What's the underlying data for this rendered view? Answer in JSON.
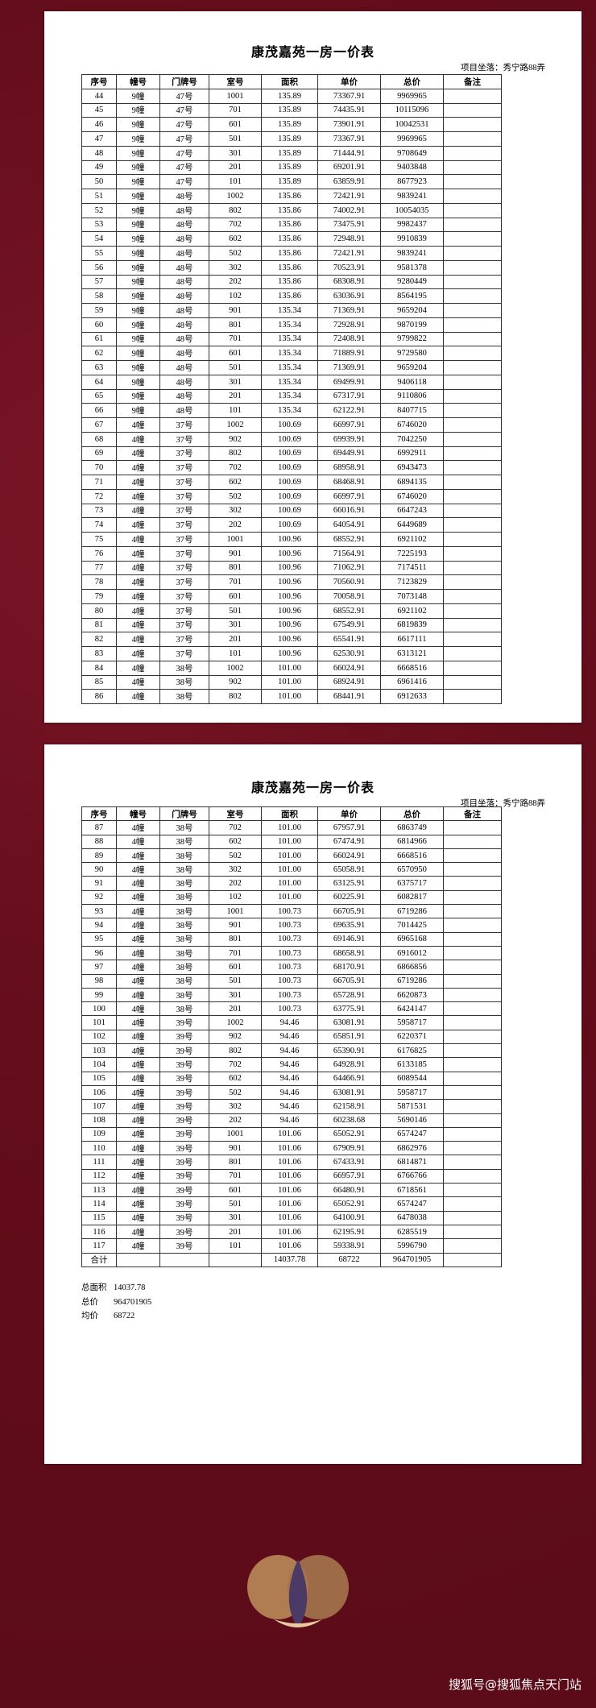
{
  "pages": [
    {
      "title": "康茂嘉苑一房一价表",
      "location": "项目坐落：秀宁路88弄",
      "headers": [
        "序号",
        "幢号",
        "门牌号",
        "室号",
        "面积",
        "单价",
        "总价",
        "备注"
      ],
      "rows": [
        [
          "44",
          "9幢",
          "47号",
          "1001",
          "135.89",
          "73367.91",
          "9969965"
        ],
        [
          "45",
          "9幢",
          "47号",
          "701",
          "135.89",
          "74435.91",
          "10115096"
        ],
        [
          "46",
          "9幢",
          "47号",
          "601",
          "135.89",
          "73901.91",
          "10042531"
        ],
        [
          "47",
          "9幢",
          "47号",
          "501",
          "135.89",
          "73367.91",
          "9969965"
        ],
        [
          "48",
          "9幢",
          "47号",
          "301",
          "135.89",
          "71444.91",
          "9708649"
        ],
        [
          "49",
          "9幢",
          "47号",
          "201",
          "135.89",
          "69201.91",
          "9403848"
        ],
        [
          "50",
          "9幢",
          "47号",
          "101",
          "135.89",
          "63859.91",
          "8677923"
        ],
        [
          "51",
          "9幢",
          "48号",
          "1002",
          "135.86",
          "72421.91",
          "9839241"
        ],
        [
          "52",
          "9幢",
          "48号",
          "802",
          "135.86",
          "74002.91",
          "10054035"
        ],
        [
          "53",
          "9幢",
          "48号",
          "702",
          "135.86",
          "73475.91",
          "9982437"
        ],
        [
          "54",
          "9幢",
          "48号",
          "602",
          "135.86",
          "72948.91",
          "9910839"
        ],
        [
          "55",
          "9幢",
          "48号",
          "502",
          "135.86",
          "72421.91",
          "9839241"
        ],
        [
          "56",
          "9幢",
          "48号",
          "302",
          "135.86",
          "70523.91",
          "9581378"
        ],
        [
          "57",
          "9幢",
          "48号",
          "202",
          "135.86",
          "68308.91",
          "9280449"
        ],
        [
          "58",
          "9幢",
          "48号",
          "102",
          "135.86",
          "63036.91",
          "8564195"
        ],
        [
          "59",
          "9幢",
          "48号",
          "901",
          "135.34",
          "71369.91",
          "9659204"
        ],
        [
          "60",
          "9幢",
          "48号",
          "801",
          "135.34",
          "72928.91",
          "9870199"
        ],
        [
          "61",
          "9幢",
          "48号",
          "701",
          "135.34",
          "72408.91",
          "9799822"
        ],
        [
          "62",
          "9幢",
          "48号",
          "601",
          "135.34",
          "71889.91",
          "9729580"
        ],
        [
          "63",
          "9幢",
          "48号",
          "501",
          "135.34",
          "71369.91",
          "9659204"
        ],
        [
          "64",
          "9幢",
          "48号",
          "301",
          "135.34",
          "69499.91",
          "9406118"
        ],
        [
          "65",
          "9幢",
          "48号",
          "201",
          "135.34",
          "67317.91",
          "9110806"
        ],
        [
          "66",
          "9幢",
          "48号",
          "101",
          "135.34",
          "62122.91",
          "8407715"
        ],
        [
          "67",
          "4幢",
          "37号",
          "1002",
          "100.69",
          "66997.91",
          "6746020"
        ],
        [
          "68",
          "4幢",
          "37号",
          "902",
          "100.69",
          "69939.91",
          "7042250"
        ],
        [
          "69",
          "4幢",
          "37号",
          "802",
          "100.69",
          "69449.91",
          "6992911"
        ],
        [
          "70",
          "4幢",
          "37号",
          "702",
          "100.69",
          "68958.91",
          "6943473"
        ],
        [
          "71",
          "4幢",
          "37号",
          "602",
          "100.69",
          "68468.91",
          "6894135"
        ],
        [
          "72",
          "4幢",
          "37号",
          "502",
          "100.69",
          "66997.91",
          "6746020"
        ],
        [
          "73",
          "4幢",
          "37号",
          "302",
          "100.69",
          "66016.91",
          "6647243"
        ],
        [
          "74",
          "4幢",
          "37号",
          "202",
          "100.69",
          "64054.91",
          "6449689"
        ],
        [
          "75",
          "4幢",
          "37号",
          "1001",
          "100.96",
          "68552.91",
          "6921102"
        ],
        [
          "76",
          "4幢",
          "37号",
          "901",
          "100.96",
          "71564.91",
          "7225193"
        ],
        [
          "77",
          "4幢",
          "37号",
          "801",
          "100.96",
          "71062.91",
          "7174511"
        ],
        [
          "78",
          "4幢",
          "37号",
          "701",
          "100.96",
          "70560.91",
          "7123829"
        ],
        [
          "79",
          "4幢",
          "37号",
          "601",
          "100.96",
          "70058.91",
          "7073148"
        ],
        [
          "80",
          "4幢",
          "37号",
          "501",
          "100.96",
          "68552.91",
          "6921102"
        ],
        [
          "81",
          "4幢",
          "37号",
          "301",
          "100.96",
          "67549.91",
          "6819839"
        ],
        [
          "82",
          "4幢",
          "37号",
          "201",
          "100.96",
          "65541.91",
          "6617111"
        ],
        [
          "83",
          "4幢",
          "37号",
          "101",
          "100.96",
          "62530.91",
          "6313121"
        ],
        [
          "84",
          "4幢",
          "38号",
          "1002",
          "101.00",
          "66024.91",
          "6668516"
        ],
        [
          "85",
          "4幢",
          "38号",
          "902",
          "101.00",
          "68924.91",
          "6961416"
        ],
        [
          "86",
          "4幢",
          "38号",
          "802",
          "101.00",
          "68441.91",
          "6912633"
        ]
      ]
    },
    {
      "title": "康茂嘉苑一房一价表",
      "location": "项目坐落：秀宁路88弄",
      "headers": [
        "序号",
        "幢号",
        "门牌号",
        "室号",
        "面积",
        "单价",
        "总价",
        "备注"
      ],
      "rows": [
        [
          "87",
          "4幢",
          "38号",
          "702",
          "101.00",
          "67957.91",
          "6863749"
        ],
        [
          "88",
          "4幢",
          "38号",
          "602",
          "101.00",
          "67474.91",
          "6814966"
        ],
        [
          "89",
          "4幢",
          "38号",
          "502",
          "101.00",
          "66024.91",
          "6668516"
        ],
        [
          "90",
          "4幢",
          "38号",
          "302",
          "101.00",
          "65058.91",
          "6570950"
        ],
        [
          "91",
          "4幢",
          "38号",
          "202",
          "101.00",
          "63125.91",
          "6375717"
        ],
        [
          "92",
          "4幢",
          "38号",
          "102",
          "101.00",
          "60225.91",
          "6082817"
        ],
        [
          "93",
          "4幢",
          "38号",
          "1001",
          "100.73",
          "66705.91",
          "6719286"
        ],
        [
          "94",
          "4幢",
          "38号",
          "901",
          "100.73",
          "69635.91",
          "7014425"
        ],
        [
          "95",
          "4幢",
          "38号",
          "801",
          "100.73",
          "69146.91",
          "6965168"
        ],
        [
          "96",
          "4幢",
          "38号",
          "701",
          "100.73",
          "68658.91",
          "6916012"
        ],
        [
          "97",
          "4幢",
          "38号",
          "601",
          "100.73",
          "68170.91",
          "6866856"
        ],
        [
          "98",
          "4幢",
          "38号",
          "501",
          "100.73",
          "66705.91",
          "6719286"
        ],
        [
          "99",
          "4幢",
          "38号",
          "301",
          "100.73",
          "65728.91",
          "6620873"
        ],
        [
          "100",
          "4幢",
          "38号",
          "201",
          "100.73",
          "63775.91",
          "6424147"
        ],
        [
          "101",
          "4幢",
          "39号",
          "1002",
          "94.46",
          "63081.91",
          "5958717"
        ],
        [
          "102",
          "4幢",
          "39号",
          "902",
          "94.46",
          "65851.91",
          "6220371"
        ],
        [
          "103",
          "4幢",
          "39号",
          "802",
          "94.46",
          "65390.91",
          "6176825"
        ],
        [
          "104",
          "4幢",
          "39号",
          "702",
          "94.46",
          "64928.91",
          "6133185"
        ],
        [
          "105",
          "4幢",
          "39号",
          "602",
          "94.46",
          "64466.91",
          "6089544"
        ],
        [
          "106",
          "4幢",
          "39号",
          "502",
          "94.46",
          "63081.91",
          "5958717"
        ],
        [
          "107",
          "4幢",
          "39号",
          "302",
          "94.46",
          "62158.91",
          "5871531"
        ],
        [
          "108",
          "4幢",
          "39号",
          "202",
          "94.46",
          "60238.68",
          "5690146"
        ],
        [
          "109",
          "4幢",
          "39号",
          "1001",
          "101.06",
          "65052.91",
          "6574247"
        ],
        [
          "110",
          "4幢",
          "39号",
          "901",
          "101.06",
          "67909.91",
          "6862976"
        ],
        [
          "111",
          "4幢",
          "39号",
          "801",
          "101.06",
          "67433.91",
          "6814871"
        ],
        [
          "112",
          "4幢",
          "39号",
          "701",
          "101.06",
          "66957.91",
          "6766766"
        ],
        [
          "113",
          "4幢",
          "39号",
          "601",
          "101.06",
          "66480.91",
          "6718561"
        ],
        [
          "114",
          "4幢",
          "39号",
          "501",
          "101.06",
          "65052.91",
          "6574247"
        ],
        [
          "115",
          "4幢",
          "39号",
          "301",
          "101.06",
          "64100.91",
          "6478038"
        ],
        [
          "116",
          "4幢",
          "39号",
          "201",
          "101.06",
          "62195.91",
          "6285519"
        ],
        [
          "117",
          "4幢",
          "39号",
          "101",
          "101.06",
          "59338.91",
          "5996790"
        ]
      ],
      "total": {
        "label": "合计",
        "area": "14037.78",
        "price": "68722",
        "amount": "964701905"
      },
      "summary": [
        {
          "label": "总面积",
          "value": "14037.78"
        },
        {
          "label": "总价",
          "value": "964701905"
        },
        {
          "label": "均价",
          "value": "68722"
        }
      ]
    }
  ],
  "footer": "搜狐号@搜狐焦点天门站"
}
